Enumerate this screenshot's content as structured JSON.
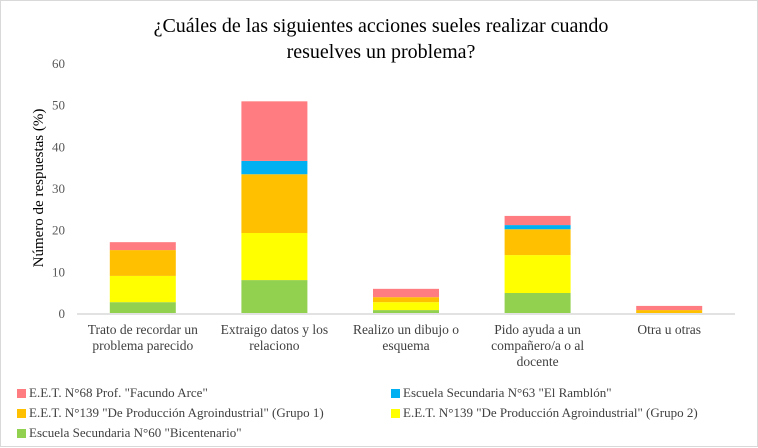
{
  "chart_data": {
    "type": "bar",
    "stacked": true,
    "title": [
      "¿Cuáles de las siguientes acciones sueles realizar cuando",
      "resuelves un problema?"
    ],
    "ylabel": "Número de respuestas (%)",
    "xlabel": "",
    "ylim": [
      0,
      60
    ],
    "yticks": [
      "0",
      "10",
      "20",
      "30",
      "40",
      "50",
      "60"
    ],
    "categories": [
      [
        "Trato de recordar un",
        "problema parecido"
      ],
      [
        "Extraigo datos y los",
        "relaciono"
      ],
      [
        "Realizo un dibujo o",
        "esquema"
      ],
      [
        "Pido ayuda a un",
        "compañero/a o al",
        "docente"
      ],
      [
        "Otra u otras"
      ]
    ],
    "series": [
      {
        "name": "Escuela Secundaria N°60 \"Bicentenario\"",
        "color": "#92d050",
        "values": [
          2.6,
          7.9,
          0.7,
          4.8,
          0
        ]
      },
      {
        "name": "E.E.T. N°139 \"De Producción Agroindustrial\" (Grupo 2)",
        "color": "#ffff00",
        "values": [
          6.3,
          11.3,
          1.9,
          9.1,
          0
        ]
      },
      {
        "name": "E.E.T. N°139 \"De Producción Agroindustrial\" (Grupo 1)",
        "color": "#ffc000",
        "values": [
          6.2,
          14.1,
          1.2,
          6.2,
          0.7
        ]
      },
      {
        "name": "Escuela Secundaria N°63 \"El Ramblón\"",
        "color": "#00b0f0",
        "values": [
          0,
          3.2,
          0,
          1.0,
          0
        ]
      },
      {
        "name": "E.E.T. N°68 Prof. \"Facundo Arce\"",
        "color": "#ff7c80",
        "values": [
          1.9,
          14.3,
          2.0,
          2.2,
          1.0
        ]
      }
    ],
    "legend_position": "bottom",
    "grid": false
  }
}
